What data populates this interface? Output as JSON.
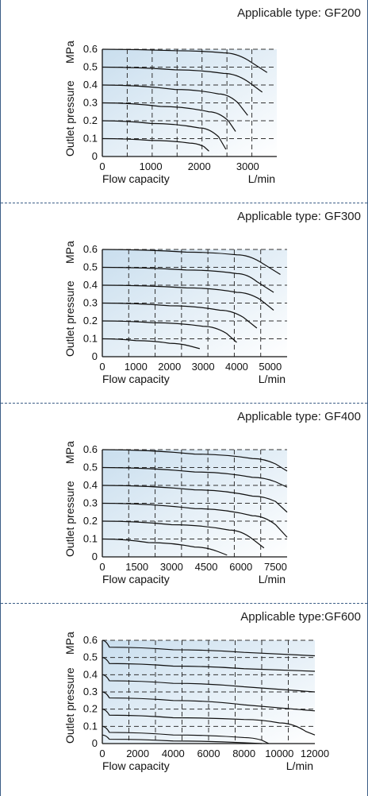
{
  "chart_data": [
    {
      "type": "line",
      "title": "Applicable type: GF200",
      "xlabel": "Flow capacity",
      "xunit": "L/min",
      "ylabel": "Outlet pressure",
      "yunit": "MPa",
      "xlim": [
        0,
        3600
      ],
      "ylim": [
        0,
        0.6
      ],
      "xticks": [
        0,
        1000,
        2000,
        3000
      ],
      "yticks": [
        0,
        0.1,
        0.2,
        0.3,
        0.4,
        0.5,
        0.6
      ],
      "grid": true,
      "series": [
        {
          "x": [
            0,
            1500,
            2500,
            3000,
            3400
          ],
          "y": [
            0.6,
            0.592,
            0.58,
            0.54,
            0.47
          ]
        },
        {
          "x": [
            0,
            1500,
            2500,
            3000,
            3300
          ],
          "y": [
            0.5,
            0.485,
            0.465,
            0.42,
            0.36
          ]
        },
        {
          "x": [
            0,
            1500,
            2400,
            2800,
            3000
          ],
          "y": [
            0.4,
            0.375,
            0.35,
            0.3,
            0.23
          ]
        },
        {
          "x": [
            0,
            1200,
            2200,
            2600,
            2750
          ],
          "y": [
            0.3,
            0.28,
            0.25,
            0.2,
            0.14
          ]
        },
        {
          "x": [
            0,
            1000,
            2000,
            2400,
            2550
          ],
          "y": [
            0.2,
            0.185,
            0.16,
            0.11,
            0.04
          ]
        },
        {
          "x": [
            0,
            1000,
            1800,
            2100,
            2200
          ],
          "y": [
            0.1,
            0.09,
            0.075,
            0.055,
            0.03
          ]
        }
      ]
    },
    {
      "type": "line",
      "title": "Applicable type: GF300",
      "xlabel": "Flow capacity",
      "xunit": "L/min",
      "ylabel": "Outlet pressure",
      "yunit": "MPa",
      "xlim": [
        0,
        5500
      ],
      "ylim": [
        0,
        0.6
      ],
      "xticks": [
        0,
        1000,
        2000,
        3000,
        4000,
        5000
      ],
      "yticks": [
        0,
        0.1,
        0.2,
        0.3,
        0.4,
        0.5,
        0.6
      ],
      "grid": true,
      "series": [
        {
          "x": [
            0,
            2500,
            4000,
            4700,
            5300
          ],
          "y": [
            0.6,
            0.585,
            0.57,
            0.53,
            0.46
          ]
        },
        {
          "x": [
            0,
            2500,
            4000,
            4600,
            5100
          ],
          "y": [
            0.5,
            0.485,
            0.465,
            0.42,
            0.36
          ]
        },
        {
          "x": [
            0,
            2500,
            4000,
            4700,
            5100
          ],
          "y": [
            0.4,
            0.385,
            0.36,
            0.32,
            0.26
          ]
        },
        {
          "x": [
            0,
            2000,
            3500,
            4200,
            4600
          ],
          "y": [
            0.3,
            0.285,
            0.26,
            0.22,
            0.16
          ]
        },
        {
          "x": [
            0,
            1500,
            3000,
            3700,
            4000
          ],
          "y": [
            0.2,
            0.19,
            0.17,
            0.13,
            0.08
          ]
        },
        {
          "x": [
            0,
            1000,
            2000,
            2600,
            2900
          ],
          "y": [
            0.1,
            0.09,
            0.075,
            0.06,
            0.045
          ]
        }
      ]
    },
    {
      "type": "line",
      "title": "Applicable type: GF400",
      "xlabel": "Flow capacity",
      "xunit": "L/min",
      "ylabel": "Outlet pressure",
      "yunit": "MPa",
      "xlim": [
        0,
        8000
      ],
      "ylim": [
        0,
        0.6
      ],
      "xticks": [
        0,
        1500,
        3000,
        4500,
        6000,
        7500
      ],
      "yticks": [
        0,
        0.1,
        0.2,
        0.3,
        0.4,
        0.5,
        0.6
      ],
      "grid": true,
      "series": [
        {
          "x": [
            0,
            4000,
            6500,
            7500,
            8000
          ],
          "y": [
            0.6,
            0.575,
            0.55,
            0.52,
            0.48
          ]
        },
        {
          "x": [
            0,
            4000,
            6500,
            7500,
            8000
          ],
          "y": [
            0.5,
            0.475,
            0.445,
            0.42,
            0.39
          ]
        },
        {
          "x": [
            0,
            4000,
            6500,
            7500,
            8000
          ],
          "y": [
            0.4,
            0.375,
            0.34,
            0.31,
            0.25
          ]
        },
        {
          "x": [
            0,
            4000,
            6500,
            7500,
            8000
          ],
          "y": [
            0.3,
            0.27,
            0.23,
            0.18,
            0.11
          ]
        },
        {
          "x": [
            0,
            3000,
            5500,
            6500,
            7000
          ],
          "y": [
            0.2,
            0.18,
            0.15,
            0.1,
            0.05
          ]
        },
        {
          "x": [
            0,
            2000,
            4000,
            5000,
            5400
          ],
          "y": [
            0.1,
            0.08,
            0.055,
            0.03,
            0.01
          ]
        }
      ]
    },
    {
      "type": "line",
      "title": "Applicable type:GF600",
      "xlabel": "Flow capacity",
      "xunit": "L/min",
      "ylabel": "Outlet pressure",
      "yunit": "MPa",
      "xlim": [
        0,
        12000
      ],
      "ylim": [
        0,
        0.6
      ],
      "xticks": [
        0,
        2000,
        4000,
        6000,
        8000,
        10000,
        12000
      ],
      "yticks": [
        0,
        0.1,
        0.2,
        0.3,
        0.4,
        0.5,
        0.6
      ],
      "grid": true,
      "series": [
        {
          "x": [
            0,
            400,
            4000,
            8000,
            12000
          ],
          "y": [
            0.6,
            0.56,
            0.545,
            0.53,
            0.51
          ]
        },
        {
          "x": [
            0,
            400,
            4000,
            8000,
            12000
          ],
          "y": [
            0.5,
            0.465,
            0.45,
            0.435,
            0.42
          ]
        },
        {
          "x": [
            0,
            400,
            4000,
            8000,
            12000
          ],
          "y": [
            0.4,
            0.365,
            0.35,
            0.33,
            0.3
          ]
        },
        {
          "x": [
            0,
            400,
            4000,
            8000,
            12000
          ],
          "y": [
            0.3,
            0.265,
            0.25,
            0.225,
            0.19
          ]
        },
        {
          "x": [
            0,
            400,
            4000,
            8000,
            10000,
            11500,
            12000
          ],
          "y": [
            0.2,
            0.165,
            0.15,
            0.14,
            0.12,
            0.07,
            0.05
          ]
        },
        {
          "x": [
            0,
            400,
            4000,
            8000,
            9000,
            9400
          ],
          "y": [
            0.1,
            0.065,
            0.05,
            0.035,
            0.02,
            0
          ]
        },
        {
          "x": [
            0,
            400,
            4000,
            8000,
            9000
          ],
          "y": [
            0.05,
            0.025,
            0.015,
            0.005,
            0
          ]
        }
      ]
    }
  ]
}
